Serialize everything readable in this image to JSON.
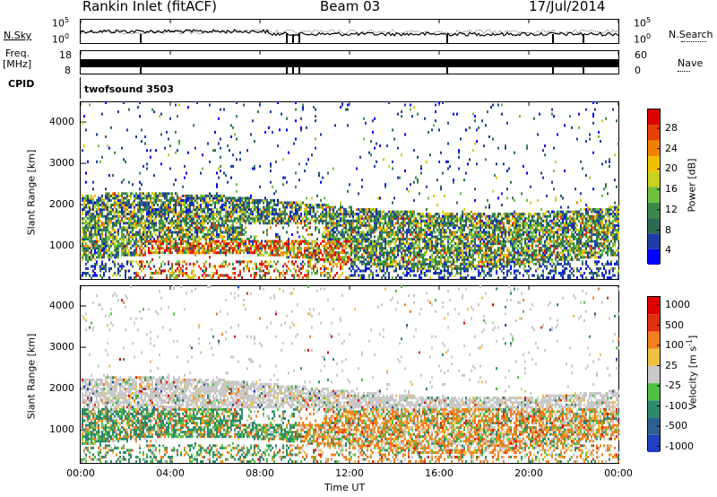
{
  "header": {
    "station": "Rankin Inlet (fitACF)",
    "beam": "Beam 03",
    "date": "17/Jul/2014"
  },
  "strips": {
    "nsky_label": "N.Sky",
    "nsearch_label": "N.Search",
    "nsky_ticks": [
      "10^5",
      "10^0"
    ],
    "nsearch_ticks": [
      "10^5",
      "10^0"
    ],
    "freq_label_1": "Freq.",
    "freq_label_2": "[MHz]",
    "freq_ticks": [
      "18",
      "8"
    ],
    "nave_label": "Nave",
    "nave_ticks": [
      "60",
      "0"
    ],
    "cpid_label": "CPID",
    "cpid_value": "twofsound 3503"
  },
  "chart_data": [
    {
      "type": "heatmap",
      "title": "",
      "xlabel": "",
      "ylabel": "Slant Range [km]",
      "xlim": [
        0,
        24
      ],
      "ylim": [
        180,
        4500
      ],
      "yticks": [
        "4000",
        "3000",
        "2000",
        "1000"
      ],
      "colorbar_label": "Power [dB]",
      "colorbar_ticks": [
        "28",
        "24",
        "20",
        "16",
        "12",
        "8",
        "4"
      ],
      "colorbar_range": [
        0,
        30
      ],
      "colors": [
        "#0000ff",
        "#1e3ca8",
        "#2e6b50",
        "#3a8a4a",
        "#6fc040",
        "#c8d020",
        "#f0c000",
        "#f08000",
        "#e84000",
        "#e00000"
      ]
    },
    {
      "type": "heatmap",
      "title": "",
      "xlabel": "Time UT",
      "ylabel": "Slant Range [km]",
      "xlim": [
        0,
        24
      ],
      "ylim": [
        180,
        4500
      ],
      "xticks": [
        "00:00",
        "04:00",
        "08:00",
        "12:00",
        "16:00",
        "20:00",
        "00:00"
      ],
      "yticks": [
        "4000",
        "3000",
        "2000",
        "1000"
      ],
      "colorbar_label": "Velocity [m s^-1]",
      "colorbar_ticks": [
        "1000",
        "500",
        "100",
        "25",
        "-25",
        "-100",
        "-500",
        "-1000"
      ],
      "colors": [
        "#2040c0",
        "#306090",
        "#2e8a6a",
        "#50c040",
        "#c8c8c8",
        "#f0c040",
        "#f08020",
        "#e03010",
        "#e00000"
      ]
    }
  ]
}
